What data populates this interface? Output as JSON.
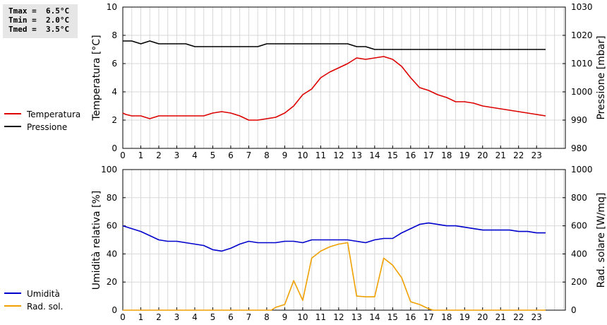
{
  "stats": {
    "tmax": "Tmax =  6.5°C",
    "tmin": "Tmin =  2.0°C",
    "tmed": "Tmed =  3.5°C"
  },
  "chart_data": [
    {
      "type": "line",
      "x_ticks": [
        0,
        1,
        2,
        3,
        4,
        5,
        6,
        7,
        8,
        9,
        10,
        11,
        12,
        13,
        14,
        15,
        16,
        17,
        18,
        19,
        20,
        21,
        22,
        23
      ],
      "xlim": [
        0,
        24.6
      ],
      "ylabel": "Temperatura [°C]",
      "ylim": [
        0,
        10
      ],
      "y_ticks": [
        0,
        2,
        4,
        6,
        8,
        10
      ],
      "y2label": "Pressione [mbar]",
      "y2lim": [
        980,
        1030
      ],
      "y2_ticks": [
        980,
        990,
        1000,
        1010,
        1020,
        1030
      ],
      "grid": true,
      "legend_placement": "left",
      "series": [
        {
          "name": "Temperatura",
          "axis": "left",
          "color": "#dd0000",
          "x": [
            0,
            0.17,
            0.5,
            1,
            1.5,
            2,
            2.5,
            3,
            3.5,
            4,
            4.5,
            5,
            5.5,
            6,
            6.5,
            7,
            7.5,
            8,
            8.5,
            9,
            9.5,
            10,
            10.5,
            11,
            11.5,
            12,
            12.5,
            13,
            13.5,
            14,
            14.5,
            15,
            15.5,
            16,
            16.5,
            17,
            17.5,
            18,
            18.5,
            19,
            19.5,
            20,
            20.5,
            21,
            21.5,
            22,
            22.5,
            23,
            23.5
          ],
          "y": [
            2.5,
            2.4,
            2.3,
            2.3,
            2.1,
            2.3,
            2.3,
            2.3,
            2.3,
            2.3,
            2.3,
            2.5,
            2.6,
            2.5,
            2.3,
            2.0,
            2.0,
            2.1,
            2.2,
            2.5,
            3.0,
            3.8,
            4.2,
            5.0,
            5.4,
            5.7,
            6.0,
            6.4,
            6.3,
            6.4,
            6.5,
            6.3,
            5.8,
            5.0,
            4.3,
            4.1,
            3.8,
            3.6,
            3.3,
            3.3,
            3.2,
            3.0,
            2.9,
            2.8,
            2.7,
            2.6,
            2.5,
            2.4,
            2.3
          ]
        },
        {
          "name": "Pressione",
          "axis": "right",
          "color": "#000000",
          "x": [
            0,
            0.5,
            1,
            1.5,
            2,
            2.5,
            3,
            3.5,
            4,
            4.5,
            5,
            5.5,
            6,
            6.5,
            7,
            7.5,
            8,
            8.5,
            9,
            9.5,
            10,
            10.5,
            11,
            11.5,
            12,
            12.5,
            13,
            13.5,
            14,
            14.5,
            15,
            15.5,
            16,
            16.5,
            17,
            17.5,
            18,
            18.5,
            19,
            19.5,
            20,
            20.5,
            21,
            21.5,
            22,
            22.5,
            23,
            23.5
          ],
          "y": [
            1018,
            1018,
            1017,
            1018,
            1017,
            1017,
            1017,
            1017,
            1016,
            1016,
            1016,
            1016,
            1016,
            1016,
            1016,
            1016,
            1017,
            1017,
            1017,
            1017,
            1017,
            1017,
            1017,
            1017,
            1017,
            1017,
            1016,
            1016,
            1015,
            1015,
            1015,
            1015,
            1015,
            1015,
            1015,
            1015,
            1015,
            1015,
            1015,
            1015,
            1015,
            1015,
            1015,
            1015,
            1015,
            1015,
            1015,
            1015
          ]
        }
      ]
    },
    {
      "type": "line",
      "x_ticks": [
        0,
        1,
        2,
        3,
        4,
        5,
        6,
        7,
        8,
        9,
        10,
        11,
        12,
        13,
        14,
        15,
        16,
        17,
        18,
        19,
        20,
        21,
        22,
        23
      ],
      "xlim": [
        0,
        24.6
      ],
      "ylabel": "Umidità relativa [%]",
      "ylim": [
        0,
        100
      ],
      "y_ticks": [
        0,
        20,
        40,
        60,
        80,
        100
      ],
      "y2label": "Rad. solare [W/mq]",
      "y2lim": [
        0,
        1000
      ],
      "y2_ticks": [
        0,
        200,
        400,
        600,
        800,
        1000
      ],
      "grid": true,
      "legend_placement": "left",
      "series": [
        {
          "name": "Umidità",
          "axis": "left",
          "color": "#0000cc",
          "x": [
            0,
            0.5,
            1,
            1.5,
            2,
            2.5,
            3,
            3.5,
            4,
            4.5,
            5,
            5.5,
            6,
            6.5,
            7,
            7.5,
            8,
            8.5,
            9,
            9.5,
            10,
            10.5,
            11,
            11.5,
            12,
            12.5,
            13,
            13.5,
            14,
            14.5,
            15,
            15.5,
            16,
            16.5,
            17,
            17.5,
            18,
            18.5,
            19,
            19.5,
            20,
            20.5,
            21,
            21.5,
            22,
            22.5,
            23,
            23.5
          ],
          "y": [
            60,
            58,
            56,
            53,
            50,
            49,
            49,
            48,
            47,
            46,
            43,
            42,
            44,
            47,
            49,
            48,
            48,
            48,
            49,
            49,
            48,
            50,
            50,
            50,
            50,
            50,
            49,
            48,
            50,
            51,
            51,
            55,
            58,
            61,
            62,
            61,
            60,
            60,
            59,
            58,
            57,
            57,
            57,
            57,
            56,
            56,
            55,
            55
          ]
        },
        {
          "name": "Rad. sol.",
          "axis": "right",
          "color": "#f0a000",
          "x": [
            0,
            1,
            2,
            3,
            4,
            5,
            6,
            7,
            8,
            8.25,
            8.5,
            9,
            9.5,
            10,
            10.5,
            11,
            11.5,
            12,
            12.5,
            13,
            13.5,
            14,
            14.5,
            14.8,
            15,
            15.5,
            16,
            16.5,
            17,
            17.25,
            18,
            19,
            20,
            21,
            22,
            23,
            23.5
          ],
          "y": [
            0,
            0,
            0,
            0,
            0,
            0,
            0,
            0,
            0,
            0,
            20,
            40,
            210,
            70,
            370,
            420,
            450,
            470,
            480,
            100,
            95,
            95,
            370,
            340,
            320,
            230,
            60,
            40,
            10,
            0,
            0,
            0,
            0,
            0,
            0,
            0,
            0
          ]
        }
      ]
    }
  ]
}
